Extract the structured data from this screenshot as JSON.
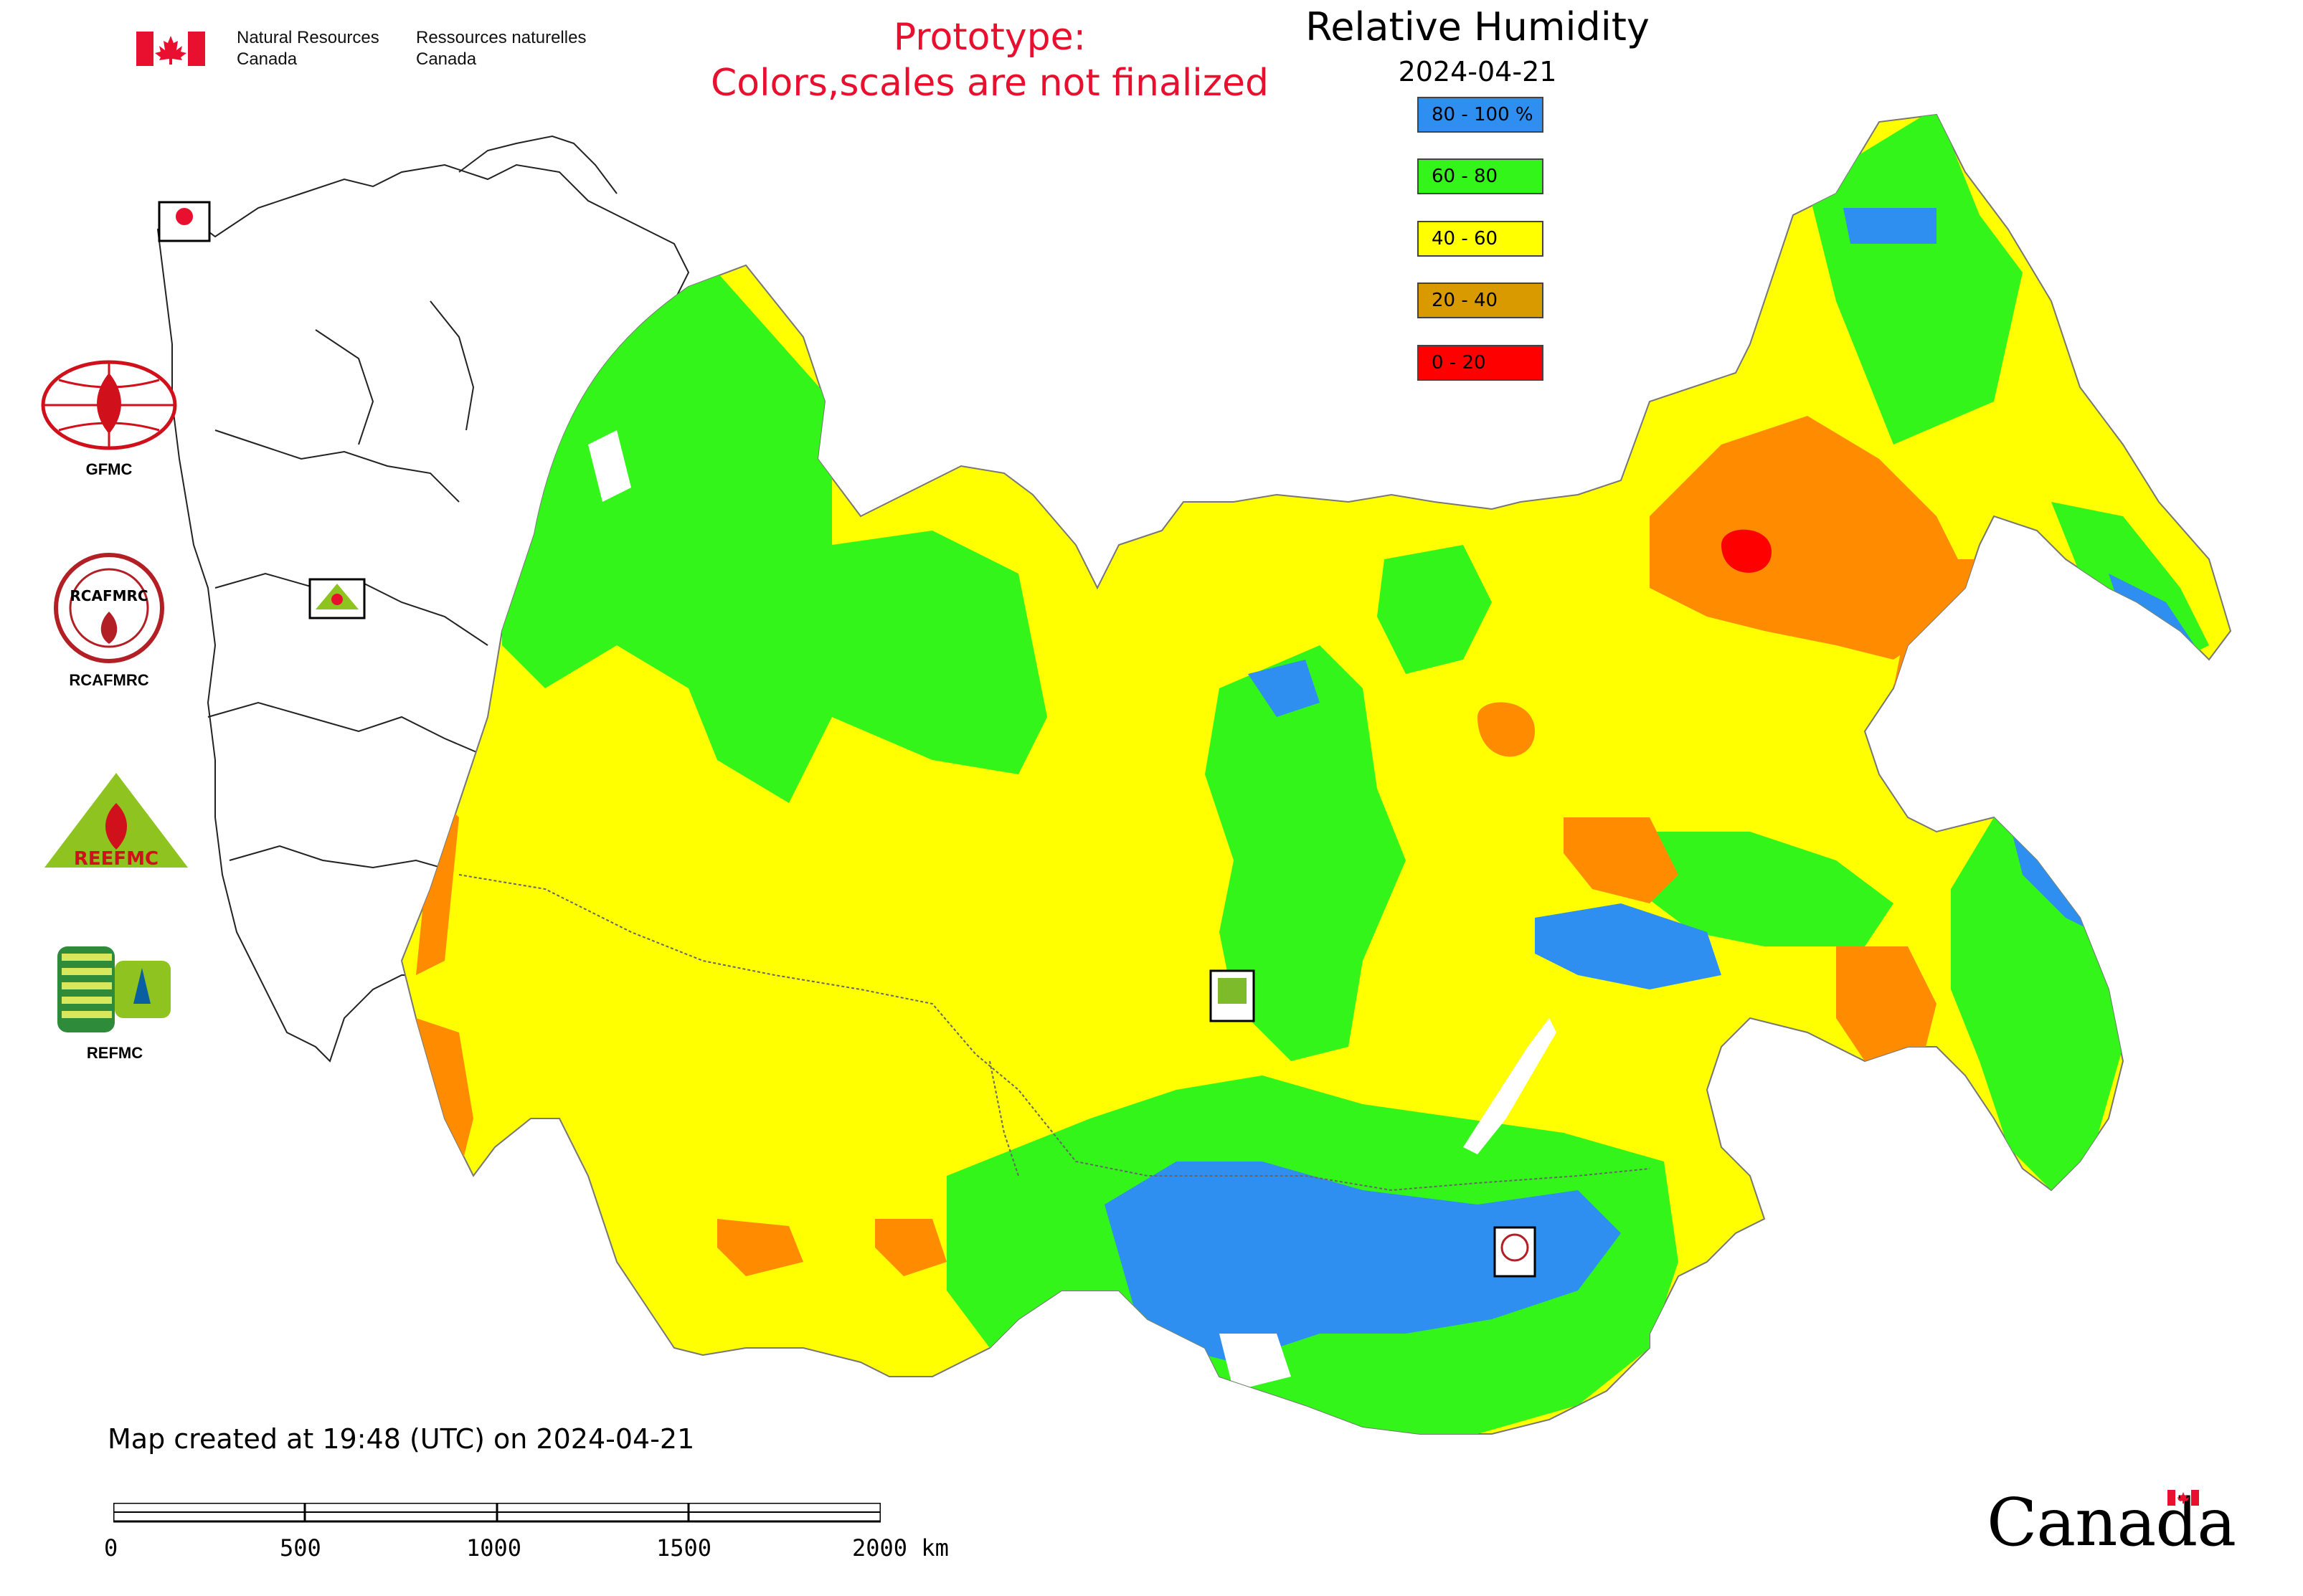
{
  "header": {
    "nrc_en_line1": "Natural Resources",
    "nrc_en_line2": "Canada",
    "nrc_fr_line1": "Ressources naturelles",
    "nrc_fr_line2": "Canada",
    "prototype_line1": "Prototype:",
    "prototype_line2": "Colors,scales are not finalized",
    "title": "Relative Humidity",
    "date": "2024-04-21"
  },
  "legend": [
    {
      "label": "80 - 100 %",
      "color": "#2f8ff0"
    },
    {
      "label": "60 - 80",
      "color": "#33f51a"
    },
    {
      "label": "40 - 60",
      "color": "#ffff00"
    },
    {
      "label": "20 - 40",
      "color": "#d99a00"
    },
    {
      "label": "0 - 20",
      "color": "#ff0000"
    }
  ],
  "logos": {
    "gfmc": "GFMC",
    "rcafmrc": "RCAFMRC",
    "reefmc": "REEFMC",
    "refmc": "REFMC",
    "rcafmrc_emblem": "RCAFMRC",
    "reefmc_emblem": "REEFMC",
    "refmc_emblem": "REFMC",
    "small_gfmc": "GFMC",
    "small_rcafmrc": "RCAFMRC",
    "small_refmc": "REFMC",
    "small_reefmc": "REEFMC"
  },
  "footer": {
    "created": "Map created at 19:48 (UTC) on 2024-04-21",
    "scale_labels": [
      "0",
      "500",
      "1000",
      "1500",
      "2000 km"
    ],
    "wordmark": "Canada"
  },
  "colors": {
    "blue": "#2f8ff0",
    "green": "#33f51a",
    "yellow": "#ffff00",
    "orange": "#ff8c00",
    "red": "#ff0000",
    "prototype_red": "#e8102e"
  }
}
